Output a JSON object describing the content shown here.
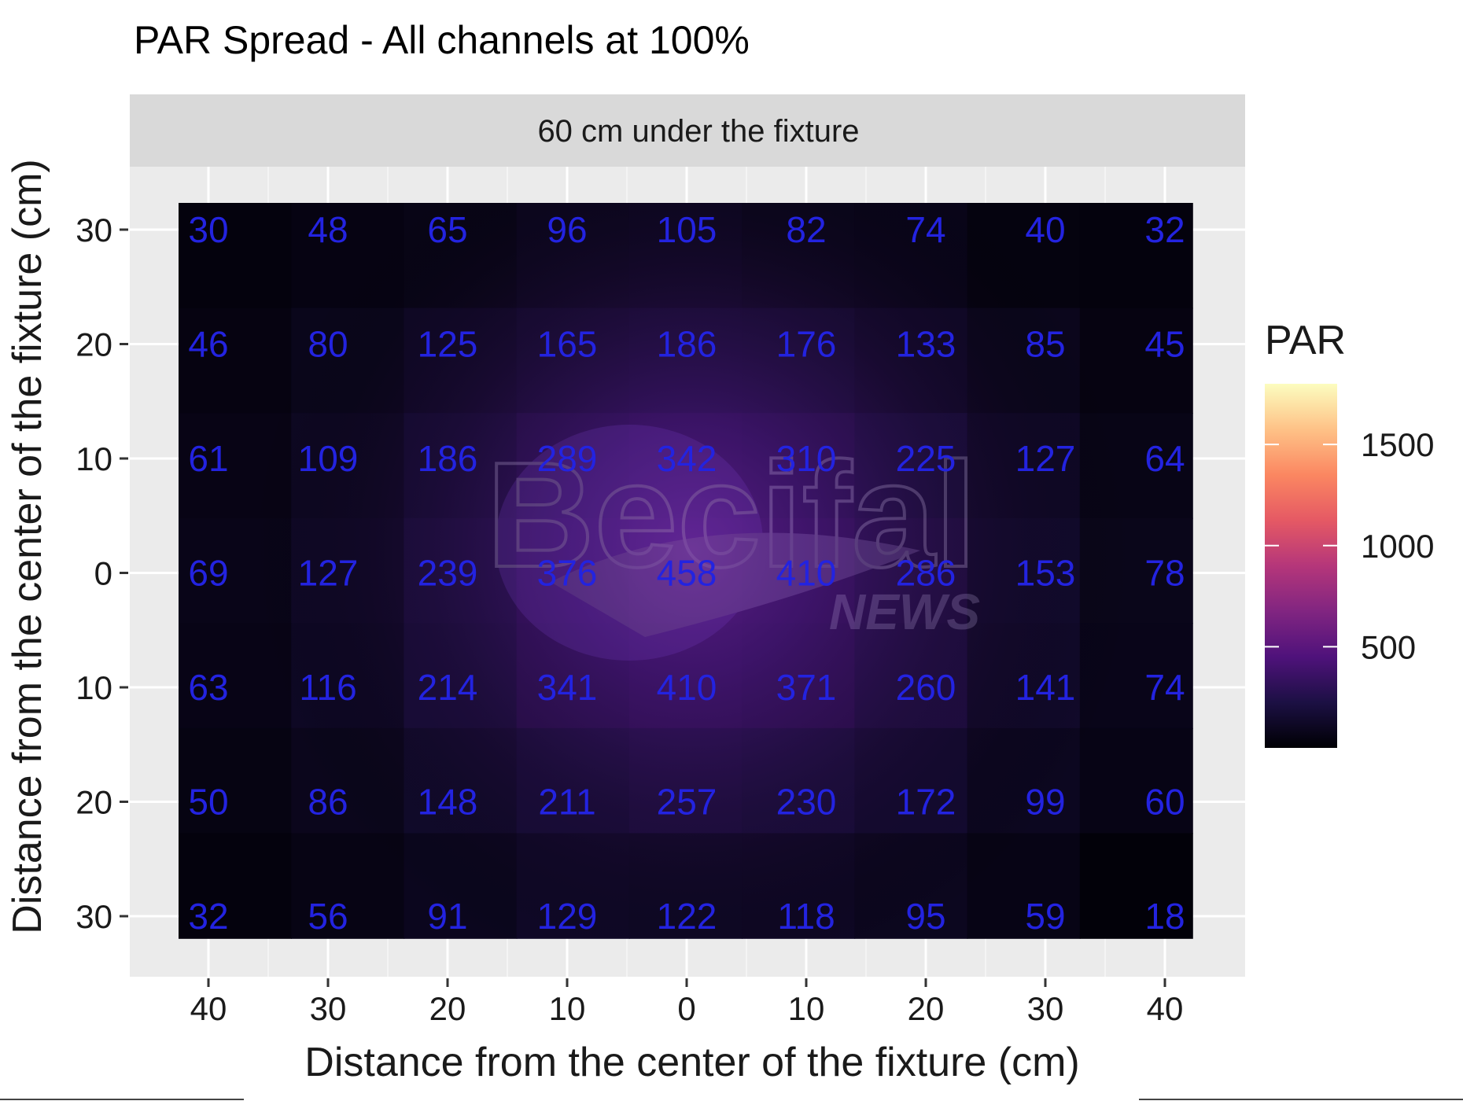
{
  "chart_data": {
    "type": "heatmap",
    "title": "PAR Spread - All channels at 100%",
    "facet_label": "60 cm under the fixture",
    "xlabel": "Distance from the center of the fixture (cm)",
    "ylabel": "Distance from the center of the fixture (cm)",
    "x_ticks": [
      "40",
      "30",
      "20",
      "10",
      "0",
      "10",
      "20",
      "30",
      "40"
    ],
    "y_ticks": [
      "30",
      "20",
      "10",
      "0",
      "10",
      "20",
      "30"
    ],
    "values": [
      [
        30,
        48,
        65,
        96,
        105,
        82,
        74,
        40,
        32
      ],
      [
        46,
        80,
        125,
        165,
        186,
        176,
        133,
        85,
        45
      ],
      [
        61,
        109,
        186,
        289,
        342,
        310,
        225,
        127,
        64
      ],
      [
        69,
        127,
        239,
        376,
        458,
        410,
        286,
        153,
        78
      ],
      [
        63,
        116,
        214,
        341,
        410,
        371,
        260,
        141,
        74
      ],
      [
        50,
        86,
        148,
        211,
        257,
        230,
        172,
        99,
        60
      ],
      [
        32,
        56,
        91,
        129,
        122,
        118,
        95,
        59,
        18
      ]
    ],
    "legend": {
      "title": "PAR",
      "ticks": [
        1500,
        1000,
        500
      ],
      "min": 0,
      "max": 1800,
      "placement": "right"
    },
    "colors": {
      "panel_bg": "#ebebeb",
      "strip_bg": "#d9d9d9",
      "cell_label": "#2323e0",
      "colormap": [
        "#000004",
        "#1c1044",
        "#4f127b",
        "#812581",
        "#b5367a",
        "#e55964",
        "#fb8761",
        "#fec287",
        "#fcfdbf"
      ]
    }
  },
  "watermark": {
    "brand": "Becifal",
    "sub": "NEWS"
  }
}
